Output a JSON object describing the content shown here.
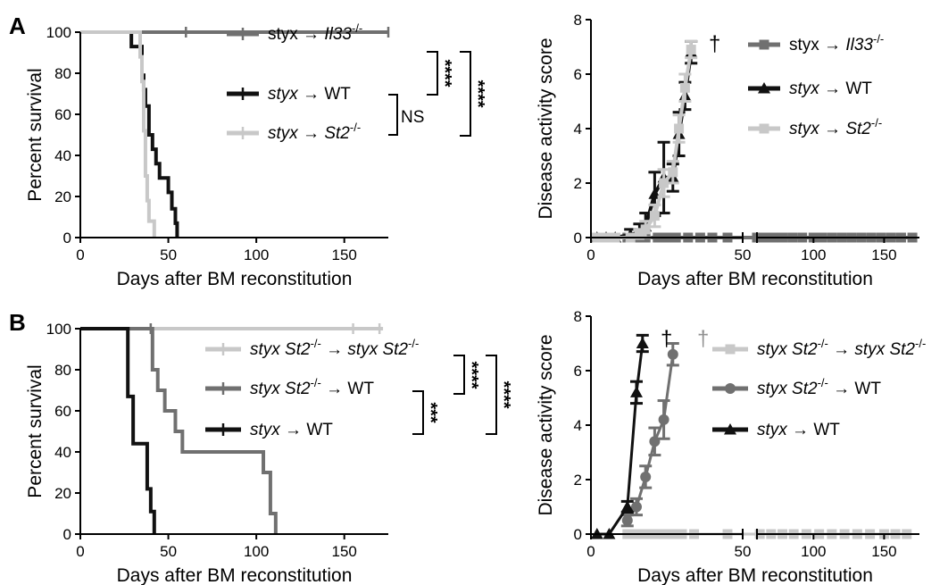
{
  "panel_letters": [
    "A",
    "B"
  ],
  "chart_data": [
    {
      "id": "A-left",
      "type": "line",
      "subtype": "survival-step",
      "xlabel": "Days after BM reconstitution",
      "ylabel": "Percent survival",
      "xlim": [
        0,
        175
      ],
      "ylim": [
        0,
        100
      ],
      "xticks": [
        0,
        50,
        100,
        150
      ],
      "yticks": [
        0,
        20,
        40,
        60,
        80,
        100
      ],
      "legend_position": "top-right",
      "series": [
        {
          "name": "styx → Il33-/-",
          "label_parts": [
            {
              "t": "styx → "
            },
            {
              "t": "Il33",
              "i": true
            },
            {
              "t": "-/-",
              "sup": true
            }
          ],
          "color": "#707070",
          "x": [
            0,
            175
          ],
          "y": [
            100,
            100
          ],
          "censor": [
            60,
            175
          ]
        },
        {
          "name": "styx → WT",
          "label_parts": [
            {
              "t": "styx",
              "i": true
            },
            {
              "t": " → WT"
            }
          ],
          "color": "#111111",
          "x": [
            0,
            20,
            29,
            34,
            35,
            36,
            37,
            39,
            41,
            43,
            45,
            47,
            50,
            52,
            54,
            55
          ],
          "y": [
            100,
            100,
            93,
            93,
            79,
            72,
            64,
            50,
            43,
            36,
            29,
            29,
            22,
            14,
            7,
            0
          ]
        },
        {
          "name": "styx → St2-/-",
          "label_parts": [
            {
              "t": "styx",
              "i": true
            },
            {
              "t": " → "
            },
            {
              "t": "St2",
              "i": true
            },
            {
              "t": "-/-",
              "sup": true
            }
          ],
          "color": "#c8c8c8",
          "x": [
            0,
            33,
            34,
            35,
            36,
            37,
            38,
            39,
            40,
            42
          ],
          "y": [
            100,
            100,
            88,
            76,
            52,
            30,
            18,
            8,
            8,
            0
          ]
        }
      ],
      "annotations": {
        "ns_label": "NS",
        "sig_labels": [
          "****",
          "****"
        ]
      }
    },
    {
      "id": "A-right",
      "type": "line",
      "xlabel": "Days after BM reconstitution",
      "ylabel": "Disease activity score",
      "xlim": [
        0,
        175
      ],
      "ylim": [
        0,
        8
      ],
      "xticks": [
        0,
        50,
        100,
        150
      ],
      "yticks": [
        0,
        2,
        4,
        6,
        8
      ],
      "axis_break": [
        50,
        60
      ],
      "legend_position": "top-right",
      "series": [
        {
          "name": "styx → Il33-/-",
          "label_parts": [
            {
              "t": "styx → "
            },
            {
              "t": "Il33",
              "i": true
            },
            {
              "t": "-/-",
              "sup": true
            }
          ],
          "color": "#707070",
          "marker": "square",
          "x": [
            2,
            5,
            8,
            12,
            15,
            18,
            22,
            25,
            28,
            32,
            36,
            40,
            45,
            60,
            66,
            72,
            78,
            85,
            92,
            100,
            106,
            113,
            120,
            127,
            134,
            141,
            148,
            155,
            162,
            170
          ],
          "y": [
            0,
            0,
            0,
            0,
            0,
            0,
            0,
            0,
            0,
            0,
            0,
            0,
            0,
            0,
            0,
            0,
            0,
            0,
            0,
            0,
            0,
            0,
            0,
            0,
            0,
            0,
            0,
            0,
            0,
            0
          ]
        },
        {
          "name": "styx → WT",
          "label_parts": [
            {
              "t": "styx",
              "i": true
            },
            {
              "t": " → WT"
            }
          ],
          "color": "#111111",
          "marker": "triangle",
          "x": [
            2,
            5,
            8,
            13,
            16,
            18,
            21,
            24,
            27,
            29,
            31,
            33
          ],
          "y": [
            0,
            0,
            0,
            0.1,
            0.2,
            0.4,
            1.6,
            2.2,
            2.2,
            3.8,
            5.2,
            6.8
          ],
          "err": [
            0,
            0,
            0,
            0.2,
            0.3,
            0.5,
            0.8,
            1.3,
            0.5,
            0.8,
            0.5,
            0.4
          ]
        },
        {
          "name": "styx → St2-/-",
          "label_parts": [
            {
              "t": "styx",
              "i": true
            },
            {
              "t": " → "
            },
            {
              "t": "St2",
              "i": true
            },
            {
              "t": "-/-",
              "sup": true
            }
          ],
          "color": "#c8c8c8",
          "marker": "square",
          "x": [
            2,
            5,
            8,
            13,
            16,
            18,
            21,
            24,
            27,
            29,
            31,
            33
          ],
          "y": [
            0,
            0,
            0,
            0,
            0.1,
            0.3,
            0.8,
            2.0,
            2.4,
            4.0,
            5.5,
            6.9
          ],
          "err": [
            0,
            0,
            0,
            0,
            0.2,
            0.3,
            0.4,
            0.5,
            0.4,
            0.5,
            0.5,
            0.3
          ]
        }
      ],
      "annotations": {
        "dagger": "†"
      }
    },
    {
      "id": "B-left",
      "type": "line",
      "subtype": "survival-step",
      "xlabel": "Days after BM reconstitution",
      "ylabel": "Percent survival",
      "xlim": [
        0,
        175
      ],
      "ylim": [
        0,
        100
      ],
      "xticks": [
        0,
        50,
        100,
        150
      ],
      "yticks": [
        0,
        20,
        40,
        60,
        80,
        100
      ],
      "legend_position": "top-right",
      "series": [
        {
          "name": "styx St2-/- → styx St2-/-",
          "label_parts": [
            {
              "t": "styx St2",
              "i": true
            },
            {
              "t": "-/-",
              "sup": true
            },
            {
              "t": " → "
            },
            {
              "t": "styx St2",
              "i": true
            },
            {
              "t": "-/-",
              "sup": true
            }
          ],
          "color": "#c8c8c8",
          "x": [
            0,
            172
          ],
          "y": [
            100,
            100
          ],
          "censor": [
            40,
            155,
            170
          ]
        },
        {
          "name": "styx St2-/- → WT",
          "label_parts": [
            {
              "t": "styx St2",
              "i": true
            },
            {
              "t": "-/-",
              "sup": true
            },
            {
              "t": " → WT"
            }
          ],
          "color": "#707070",
          "x": [
            0,
            38,
            41,
            44,
            48,
            54,
            58,
            100,
            104,
            108,
            111
          ],
          "y": [
            100,
            100,
            80,
            70,
            60,
            50,
            40,
            40,
            30,
            10,
            0
          ],
          "censor": [
            40
          ]
        },
        {
          "name": "styx → WT",
          "label_parts": [
            {
              "t": "styx",
              "i": true
            },
            {
              "t": " → WT"
            }
          ],
          "color": "#111111",
          "x": [
            0,
            25,
            27,
            30,
            36,
            38,
            40,
            42
          ],
          "y": [
            100,
            100,
            67,
            44,
            44,
            22,
            11,
            0
          ]
        }
      ],
      "annotations": {
        "sig_labels": [
          "****",
          "***",
          "****"
        ]
      }
    },
    {
      "id": "B-right",
      "type": "line",
      "xlabel": "Days after BM reconstitution",
      "ylabel": "Disease activity score",
      "xlim": [
        0,
        175
      ],
      "ylim": [
        0,
        8
      ],
      "xticks": [
        0,
        50,
        100,
        150
      ],
      "yticks": [
        0,
        2,
        4,
        6,
        8
      ],
      "axis_break": [
        50,
        60
      ],
      "legend_position": "top-right",
      "series": [
        {
          "name": "styx St2-/- → styx St2-/-",
          "label_parts": [
            {
              "t": "styx St2",
              "i": true
            },
            {
              "t": "-/-",
              "sup": true
            },
            {
              "t": " → "
            },
            {
              "t": "styx St2",
              "i": true
            },
            {
              "t": "-/-",
              "sup": true
            }
          ],
          "color": "#c8c8c8",
          "marker": "square",
          "x": [
            12,
            15,
            18,
            21,
            24,
            27,
            30,
            34,
            45,
            62,
            70,
            78,
            86,
            95,
            104,
            113,
            122,
            131,
            140,
            150,
            158,
            166
          ],
          "y": [
            0,
            0,
            0,
            0,
            0,
            0,
            0,
            0,
            0,
            0,
            0,
            0,
            0,
            0,
            0,
            0,
            0,
            0,
            0,
            0,
            0,
            0
          ]
        },
        {
          "name": "styx St2-/- → WT",
          "label_parts": [
            {
              "t": "styx St2",
              "i": true
            },
            {
              "t": "-/-",
              "sup": true
            },
            {
              "t": " → WT"
            }
          ],
          "color": "#707070",
          "marker": "circle",
          "x": [
            12,
            15,
            18,
            21,
            24,
            27
          ],
          "y": [
            0.5,
            1.0,
            2.1,
            3.4,
            4.2,
            6.6
          ],
          "err": [
            0.2,
            0.3,
            0.4,
            0.5,
            0.7,
            0.4
          ]
        },
        {
          "name": "styx → WT",
          "label_parts": [
            {
              "t": "styx",
              "i": true
            },
            {
              "t": " → WT"
            }
          ],
          "color": "#111111",
          "marker": "triangle",
          "x": [
            2,
            6,
            12,
            15,
            17
          ],
          "y": [
            0,
            0,
            1.0,
            5.2,
            7.0
          ],
          "err": [
            0,
            0,
            0.2,
            0.4,
            0.3
          ]
        }
      ],
      "annotations": {
        "dagger": "†"
      }
    }
  ]
}
